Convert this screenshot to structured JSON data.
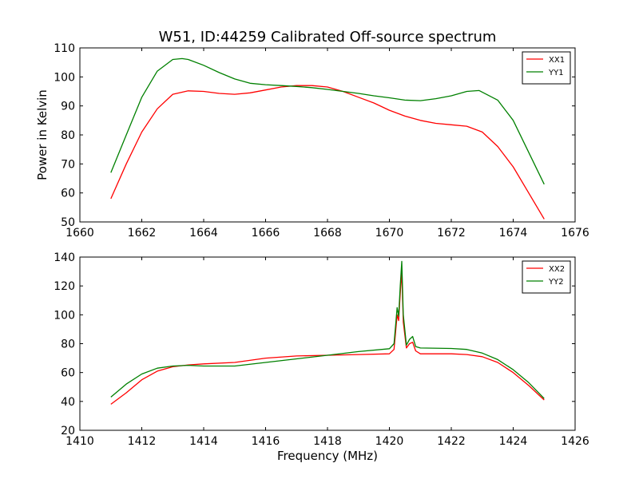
{
  "figure": {
    "title": "W51, ID:44259 Calibrated Off-source spectrum",
    "shared_ylabel": "Power in Kelvin",
    "shared_xlabel": "Frequency (MHz)"
  },
  "chart_data": [
    {
      "type": "line",
      "title": "W51, ID:44259 Calibrated Off-source spectrum",
      "ylabel": "Power in Kelvin",
      "xlabel": "",
      "xlim": [
        1660,
        1676
      ],
      "ylim": [
        50,
        110
      ],
      "xticks": [
        1660,
        1662,
        1664,
        1666,
        1668,
        1670,
        1672,
        1674,
        1676
      ],
      "yticks": [
        50,
        60,
        70,
        80,
        90,
        100,
        110
      ],
      "grid": false,
      "legend_position": "top-right",
      "series": [
        {
          "name": "XX1",
          "color": "#ff0000",
          "x": [
            1661.0,
            1661.5,
            1662.0,
            1662.5,
            1663.0,
            1663.5,
            1664.0,
            1664.5,
            1665.0,
            1665.5,
            1666.0,
            1666.5,
            1667.0,
            1667.5,
            1668.0,
            1668.5,
            1669.0,
            1669.5,
            1670.0,
            1670.5,
            1671.0,
            1671.5,
            1672.0,
            1672.5,
            1673.0,
            1673.5,
            1674.0,
            1674.5,
            1675.0
          ],
          "y": [
            58,
            70,
            81,
            89,
            94,
            95.2,
            95,
            94.3,
            94,
            94.5,
            95.5,
            96.5,
            97,
            97,
            96.5,
            95,
            93,
            91,
            88.5,
            86.5,
            85,
            84,
            83.5,
            83,
            81,
            76,
            69,
            60,
            51
          ]
        },
        {
          "name": "YY1",
          "color": "#008000",
          "x": [
            1661.0,
            1661.5,
            1662.0,
            1662.5,
            1663.0,
            1663.3,
            1663.5,
            1664.0,
            1664.5,
            1665.0,
            1665.5,
            1666.0,
            1666.5,
            1667.0,
            1667.5,
            1668.0,
            1668.5,
            1669.0,
            1669.5,
            1670.0,
            1670.5,
            1671.0,
            1671.5,
            1672.0,
            1672.5,
            1672.9,
            1673.5,
            1674.0,
            1674.5,
            1675.0
          ],
          "y": [
            67,
            80,
            93,
            102,
            106,
            106.3,
            106,
            104,
            101.5,
            99.3,
            97.8,
            97.3,
            97,
            96.7,
            96.3,
            95.7,
            95,
            94.3,
            93.5,
            92.8,
            92,
            91.8,
            92.5,
            93.5,
            95,
            95.3,
            92,
            85,
            74,
            63
          ]
        }
      ]
    },
    {
      "type": "line",
      "title": "",
      "ylabel": "",
      "xlabel": "Frequency (MHz)",
      "xlim": [
        1410,
        1426
      ],
      "ylim": [
        20,
        140
      ],
      "xticks": [
        1410,
        1412,
        1414,
        1416,
        1418,
        1420,
        1422,
        1424,
        1426
      ],
      "yticks": [
        20,
        40,
        60,
        80,
        100,
        120,
        140
      ],
      "grid": false,
      "legend_position": "top-right",
      "series": [
        {
          "name": "XX2",
          "color": "#ff0000",
          "x": [
            1411.0,
            1411.5,
            1412.0,
            1412.5,
            1413.0,
            1413.5,
            1414.0,
            1415.0,
            1416.0,
            1417.0,
            1418.0,
            1419.0,
            1420.0,
            1420.15,
            1420.25,
            1420.3,
            1420.35,
            1420.4,
            1420.45,
            1420.55,
            1420.65,
            1420.75,
            1420.85,
            1421.0,
            1422.0,
            1422.5,
            1423.0,
            1423.5,
            1424.0,
            1424.5,
            1425.0
          ],
          "y": [
            38,
            46,
            55,
            61,
            64,
            65.3,
            66,
            67,
            70,
            71.5,
            72,
            72.5,
            73,
            76,
            100,
            96,
            115,
            130,
            95,
            77,
            80,
            81,
            75,
            73,
            73,
            72.5,
            71,
            67,
            60,
            51,
            41
          ]
        },
        {
          "name": "YY2",
          "color": "#008000",
          "x": [
            1411.0,
            1411.5,
            1412.0,
            1412.5,
            1413.0,
            1413.5,
            1414.0,
            1415.0,
            1416.0,
            1417.0,
            1418.0,
            1419.0,
            1420.0,
            1420.15,
            1420.25,
            1420.3,
            1420.35,
            1420.4,
            1420.45,
            1420.55,
            1420.65,
            1420.75,
            1420.85,
            1421.0,
            1422.0,
            1422.5,
            1423.0,
            1423.5,
            1424.0,
            1424.5,
            1425.0
          ],
          "y": [
            43,
            52,
            59,
            63,
            64.5,
            65,
            64.5,
            64.5,
            67,
            69.5,
            72,
            74.5,
            76.5,
            80,
            105,
            99,
            120,
            137,
            100,
            79,
            83,
            85,
            78,
            77,
            76.7,
            76,
            73.5,
            69,
            62,
            53,
            42
          ]
        }
      ]
    }
  ]
}
